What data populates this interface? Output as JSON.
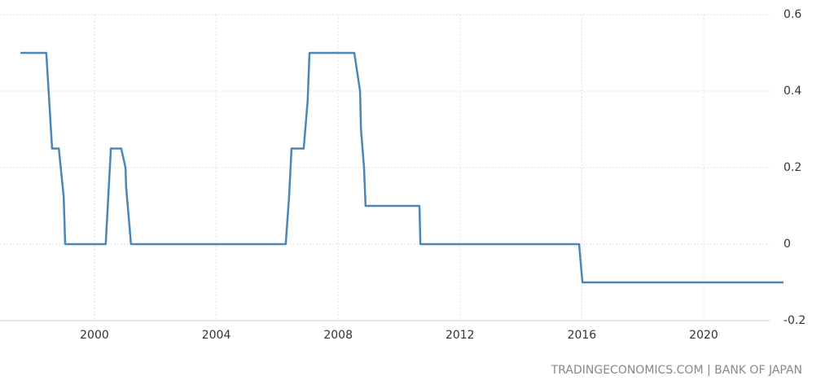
{
  "chart_data": {
    "type": "line",
    "source": "TRADINGECONOMICS.COM | BANK OF JAPAN",
    "x": [
      1997.57,
      1998.42,
      1998.61,
      1998.83,
      1998.99,
      1999.04,
      2000.37,
      2000.54,
      2000.88,
      2001.02,
      2001.04,
      2001.2,
      2006.28,
      2006.39,
      2006.47,
      2006.87,
      2007.0,
      2007.06,
      2008.53,
      2008.72,
      2008.75,
      2008.85,
      2008.9,
      2010.67,
      2010.7,
      2015.91,
      2016.02,
      2022.62
    ],
    "series": [
      {
        "color": "#4a86b8",
        "values": [
          0.5,
          0.5,
          0.25,
          0.25,
          0.125,
          0,
          0,
          0.25,
          0.25,
          0.2,
          0.15,
          0,
          0,
          0.125,
          0.25,
          0.25,
          0.375,
          0.5,
          0.5,
          0.4,
          0.3,
          0.2,
          0.1,
          0.1,
          0,
          0,
          -0.1,
          -0.1
        ]
      }
    ],
    "xlim": [
      1996.9,
      2022.62
    ],
    "xticks": [
      2000,
      2004,
      2008,
      2012,
      2016,
      2020
    ],
    "ylim": [
      -0.2,
      0.6
    ],
    "yticks": [
      0.6,
      0.4,
      0.2,
      0,
      -0.2
    ],
    "grid": true
  }
}
